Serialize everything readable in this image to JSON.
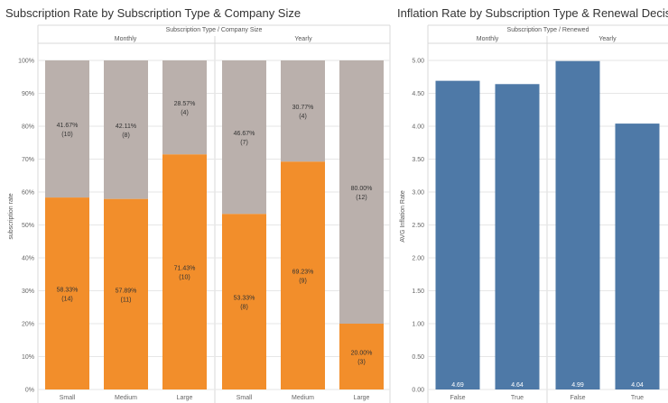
{
  "chart_data": [
    {
      "type": "stacked-bar-100",
      "title": "Subscription Rate by  Subscription Type & Company Size",
      "header": "Subscription Type  / Company Size",
      "ylabel": "subscription rate",
      "ylim": [
        0,
        100
      ],
      "yticks": [
        "0%",
        "10%",
        "20%",
        "30%",
        "40%",
        "50%",
        "60%",
        "70%",
        "80%",
        "90%",
        "100%"
      ],
      "groups": [
        {
          "name": "Monthly",
          "categories": [
            "Small",
            "Medium",
            "Large"
          ],
          "subscribed": [
            {
              "pct": 58.33,
              "label": "58.33%",
              "count": "(14)"
            },
            {
              "pct": 57.89,
              "label": "57.89%",
              "count": "(11)"
            },
            {
              "pct": 71.43,
              "label": "71.43%",
              "count": "(10)"
            }
          ],
          "not_subscribed": [
            {
              "pct": 41.67,
              "label": "41.67%",
              "count": "(10)"
            },
            {
              "pct": 42.11,
              "label": "42.11%",
              "count": "(8)"
            },
            {
              "pct": 28.57,
              "label": "28.57%",
              "count": "(4)"
            }
          ]
        },
        {
          "name": "Yearly",
          "categories": [
            "Small",
            "Medium",
            "Large"
          ],
          "subscribed": [
            {
              "pct": 53.33,
              "label": "53.33%",
              "count": "(8)"
            },
            {
              "pct": 69.23,
              "label": "69.23%",
              "count": "(9)"
            },
            {
              "pct": 20.0,
              "label": "20.00%",
              "count": "(3)"
            }
          ],
          "not_subscribed": [
            {
              "pct": 46.67,
              "label": "46.67%",
              "count": "(7)"
            },
            {
              "pct": 30.77,
              "label": "30.77%",
              "count": "(4)"
            },
            {
              "pct": 80.0,
              "label": "80.00%",
              "count": "(12)"
            }
          ]
        }
      ],
      "colors": {
        "subscribed": "#f28e2b",
        "not_subscribed": "#bab0ac"
      }
    },
    {
      "type": "bar",
      "title": "Inflation Rate by  Subscription Type & Renewal Decision",
      "header": "Subscription Type  / Renewed",
      "ylabel": "AVG Inflation Rate",
      "ylim": [
        0,
        5
      ],
      "yticks": [
        "0.00",
        "0.50",
        "1.00",
        "1.50",
        "2.00",
        "2.50",
        "3.00",
        "3.50",
        "4.00",
        "4.50",
        "5.00"
      ],
      "groups": [
        {
          "name": "Monthly",
          "categories": [
            "False",
            "True"
          ],
          "values": [
            4.69,
            4.64
          ],
          "labels": [
            "4.69",
            "4.64"
          ]
        },
        {
          "name": "Yearly",
          "categories": [
            "False",
            "True"
          ],
          "values": [
            4.99,
            4.04
          ],
          "labels": [
            "4.99",
            "4.04"
          ]
        }
      ],
      "colors": {
        "bar": "#4e79a7"
      }
    }
  ]
}
